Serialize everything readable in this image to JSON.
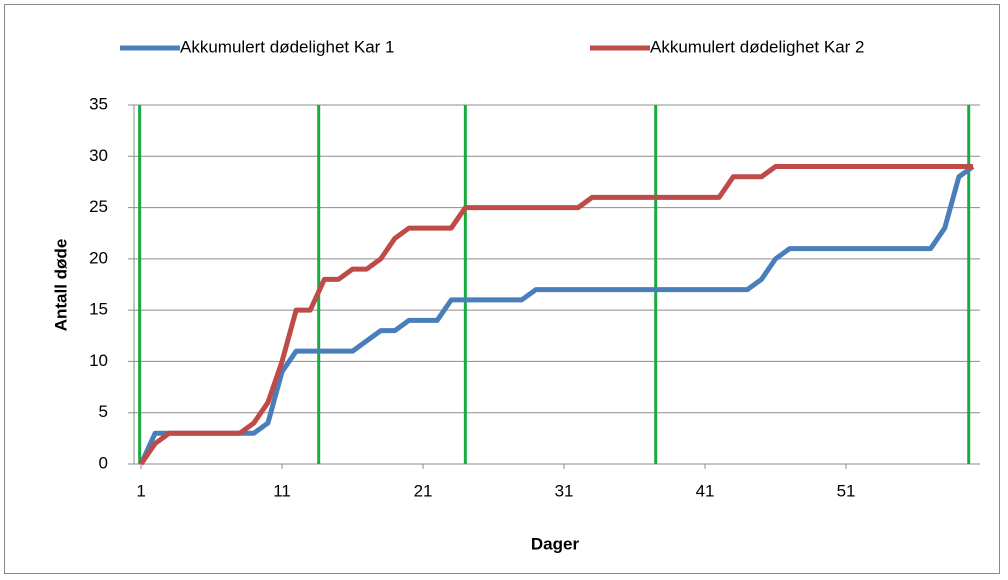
{
  "chart_data": {
    "type": "line",
    "xlabel": "Dager",
    "ylabel": "Antall døde",
    "x": [
      1,
      2,
      3,
      4,
      5,
      6,
      7,
      8,
      9,
      10,
      11,
      12,
      13,
      14,
      15,
      16,
      17,
      18,
      19,
      20,
      21,
      22,
      23,
      24,
      25,
      26,
      27,
      28,
      29,
      30,
      31,
      32,
      33,
      34,
      35,
      36,
      37,
      38,
      39,
      40,
      41,
      42,
      43,
      44,
      45,
      46,
      47,
      48,
      49,
      50,
      51,
      52,
      53,
      54,
      55,
      56,
      57,
      58,
      59,
      60
    ],
    "series": [
      {
        "name": "Akkumulert dødelighet Kar 1",
        "color": "#4a7ebb",
        "values": [
          0,
          3,
          3,
          3,
          3,
          3,
          3,
          3,
          3,
          4,
          9,
          11,
          11,
          11,
          11,
          11,
          12,
          13,
          13,
          14,
          14,
          14,
          16,
          16,
          16,
          16,
          16,
          16,
          17,
          17,
          17,
          17,
          17,
          17,
          17,
          17,
          17,
          17,
          17,
          17,
          17,
          17,
          17,
          17,
          18,
          20,
          21,
          21,
          21,
          21,
          21,
          21,
          21,
          21,
          21,
          21,
          21,
          23,
          28,
          29
        ]
      },
      {
        "name": "Akkumulert dødelighet Kar 2",
        "color": "#be4b48",
        "values": [
          0,
          2,
          3,
          3,
          3,
          3,
          3,
          3,
          4,
          6,
          10,
          15,
          15,
          18,
          18,
          19,
          19,
          20,
          22,
          23,
          23,
          23,
          23,
          25,
          25,
          25,
          25,
          25,
          25,
          25,
          25,
          25,
          26,
          26,
          26,
          26,
          26,
          26,
          26,
          26,
          26,
          26,
          28,
          28,
          28,
          29,
          29,
          29,
          29,
          29,
          29,
          29,
          29,
          29,
          29,
          29,
          29,
          29,
          29,
          29
        ]
      }
    ],
    "vertical_lines": {
      "color": "#1aab40",
      "x": [
        0.9,
        13.6,
        24,
        37.5,
        59.7
      ]
    },
    "xlim": [
      0.5,
      60.5
    ],
    "xticks": [
      1,
      11,
      21,
      31,
      41,
      51
    ],
    "ylim": [
      0,
      35
    ],
    "yticks": [
      0,
      5,
      10,
      15,
      20,
      25,
      30,
      35
    ],
    "grid": true,
    "legend": "top"
  }
}
